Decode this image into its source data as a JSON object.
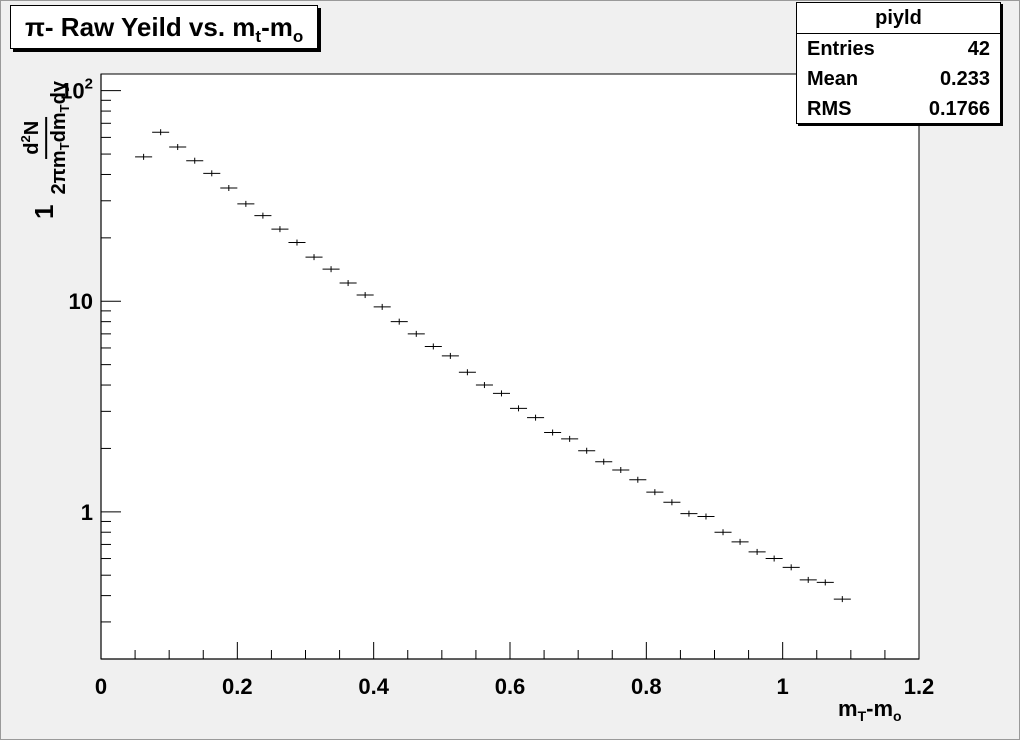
{
  "title": {
    "main": "π- Raw Yeild vs. m",
    "sub1": "t",
    "mid": "-m",
    "sub2": "o"
  },
  "stats": {
    "name": "piyld",
    "rows": [
      {
        "label": "Entries",
        "value": "42"
      },
      {
        "label": "Mean",
        "value": "0.233"
      },
      {
        "label": "RMS",
        "value": "0.1766"
      }
    ]
  },
  "axes": {
    "x_title": {
      "base": "m",
      "sub1": "T",
      "mid": "-m",
      "sub2": "o"
    },
    "y_title": {
      "prefix": "1",
      "num_d": "d",
      "num_sup": "2",
      "num_N": "N",
      "den_a": "2πm",
      "den_sub1": "T",
      "den_b": "dm",
      "den_sub2": "T",
      "den_c": "dy"
    }
  },
  "chart_data": {
    "type": "scatter",
    "title": "π- Raw Yeild vs. mt-mo",
    "xlabel": "mT-mo",
    "ylabel": "1/(2πmT) d2N/(dmT dy)",
    "xlim": [
      0,
      1.2
    ],
    "ylim": [
      0.2,
      120
    ],
    "y_scale": "log",
    "grid": false,
    "x_ticks": [
      {
        "value": 0,
        "label": "0"
      },
      {
        "value": 0.2,
        "label": "0.2"
      },
      {
        "value": 0.4,
        "label": "0.4"
      },
      {
        "value": 0.6,
        "label": "0.6"
      },
      {
        "value": 0.8,
        "label": "0.8"
      },
      {
        "value": 1,
        "label": "1"
      },
      {
        "value": 1.2,
        "label": "1.2"
      }
    ],
    "y_ticks": [
      {
        "value": 1,
        "label": "1"
      },
      {
        "value": 10,
        "label": "10"
      },
      {
        "value": 100,
        "label": "10",
        "sup": "2"
      }
    ],
    "x_bin_half_width": 0.0125,
    "series": [
      {
        "x": [
          0.0625,
          0.0875,
          0.1125,
          0.1375,
          0.1625,
          0.1875,
          0.2125,
          0.2375,
          0.2625,
          0.2875,
          0.3125,
          0.3375,
          0.3625,
          0.3875,
          0.4125,
          0.4375,
          0.4625,
          0.4875,
          0.5125,
          0.5375,
          0.5625,
          0.5875,
          0.6125,
          0.6375,
          0.6625,
          0.6875,
          0.7125,
          0.7375,
          0.7625,
          0.7875,
          0.8125,
          0.8375,
          0.8625,
          0.8875,
          0.9125,
          0.9375,
          0.9625,
          0.9875,
          1.0125,
          1.0375,
          1.0625,
          1.0875
        ],
        "y": [
          48.5,
          63.5,
          54.0,
          46.5,
          40.5,
          34.5,
          29.0,
          25.5,
          22.0,
          19.0,
          16.2,
          14.2,
          12.2,
          10.7,
          9.4,
          8.0,
          7.0,
          6.1,
          5.5,
          4.6,
          4.0,
          3.65,
          3.1,
          2.8,
          2.38,
          2.22,
          1.95,
          1.73,
          1.58,
          1.42,
          1.24,
          1.11,
          0.98,
          0.95,
          0.8,
          0.72,
          0.645,
          0.6,
          0.545,
          0.475,
          0.462,
          0.385
        ]
      }
    ]
  }
}
